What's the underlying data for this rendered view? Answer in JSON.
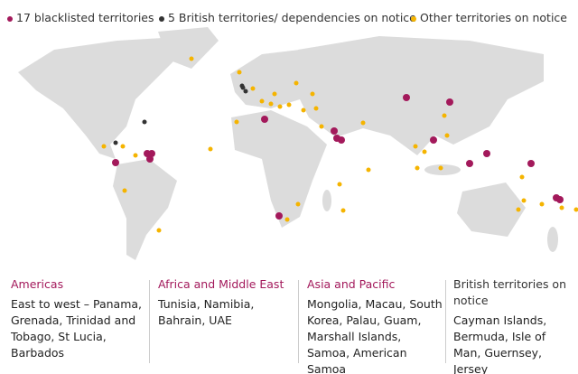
{
  "legend": [
    {
      "label": "17 blacklisted territories",
      "color": "#a3195b"
    },
    {
      "label": "5 British territories/ dependencies on notice",
      "color": "#333333"
    },
    {
      "label": "Other territories on notice",
      "color": "#f5b400"
    }
  ],
  "columns": [
    {
      "heading": "Americas",
      "text": "East to west – Panama, Grenada, Trinidad and Tobago, St Lucia, Barbados",
      "color": "#a3195b"
    },
    {
      "heading": "Africa and Middle East",
      "text": "Tunisia, Namibia, Bahrain, UAE",
      "color": "#a3195b"
    },
    {
      "heading": "Asia and Pacific",
      "text": "Mongolia, Macau, South Korea, Palau, Guam, Marshall Islands, Samoa, American Samoa",
      "color": "#a3195b"
    },
    {
      "heading": "British territories on notice",
      "text": "Cayman Islands, Bermuda, Isle of Man, Guernsey, Jersey",
      "color": "#333333"
    }
  ]
}
